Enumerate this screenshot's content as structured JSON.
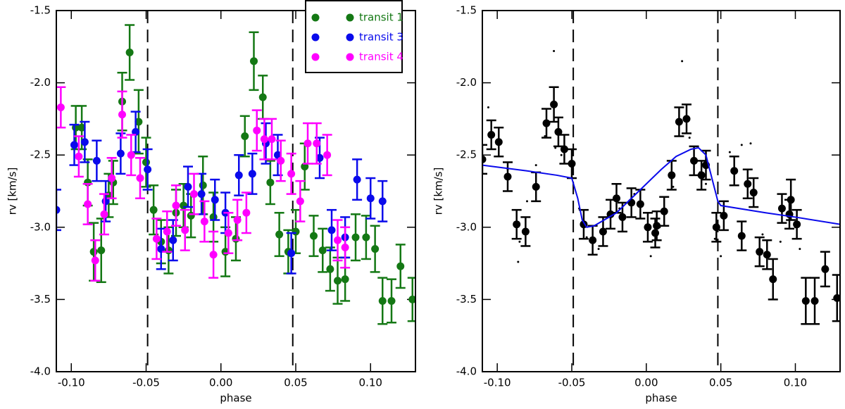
{
  "chart_data": [
    {
      "type": "scatter",
      "xlabel": "phase",
      "ylabel": "rv [km/s]",
      "xlim": [
        -0.11,
        0.13
      ],
      "ylim": [
        -4.0,
        -1.5
      ],
      "xticks": [
        {
          "value": -0.1,
          "label": "-0.10"
        },
        {
          "value": -0.05,
          "label": "-0.05"
        },
        {
          "value": 0,
          "label": "0.00"
        },
        {
          "value": 0.05,
          "label": "0.05"
        },
        {
          "value": 0.1,
          "label": "0.10"
        }
      ],
      "yticks": [
        {
          "value": -4,
          "label": "-4.0"
        },
        -3.5,
        {
          "value": -3,
          "label": "-3.0"
        },
        -2.5,
        {
          "value": -2,
          "label": "-2.0"
        },
        -1.5
      ],
      "vlines": [
        -0.049,
        0.048
      ],
      "legend": "upper right",
      "series": [
        {
          "name": "transit 1",
          "color": "#147814",
          "x": [
            -0.097,
            -0.093,
            -0.089,
            -0.085,
            -0.08,
            -0.075,
            -0.072,
            -0.066,
            -0.061,
            -0.055,
            -0.05,
            -0.045,
            -0.04,
            -0.035,
            -0.03,
            -0.025,
            -0.02,
            -0.012,
            -0.005,
            0.003,
            0.01,
            0.016,
            0.022,
            0.028,
            0.033,
            0.039,
            0.045,
            0.05,
            0.056,
            0.062,
            0.068,
            0.073,
            0.078,
            0.083,
            0.09,
            0.097,
            0.103,
            0.108,
            0.114,
            0.12,
            0.128
          ],
          "values": [
            -2.31,
            -2.31,
            -2.69,
            -3.17,
            -3.16,
            -2.78,
            -2.69,
            -2.13,
            -1.79,
            -2.27,
            -2.55,
            -2.88,
            -3.1,
            -3.16,
            -2.9,
            -2.85,
            -2.92,
            -2.71,
            -2.93,
            -3.17,
            -3.08,
            -2.37,
            -1.85,
            -2.1,
            -2.69,
            -3.05,
            -3.17,
            -3.03,
            -2.58,
            -3.06,
            -3.16,
            -3.29,
            -3.37,
            -3.36,
            -3.07,
            -3.07,
            -3.15,
            -3.51,
            -3.51,
            -3.27,
            -3.5
          ],
          "errors": [
            0.15,
            0.15,
            0.16,
            0.2,
            0.22,
            0.15,
            0.15,
            0.2,
            0.19,
            0.22,
            0.17,
            0.17,
            0.15,
            0.16,
            0.16,
            0.15,
            0.15,
            0.2,
            0.17,
            0.17,
            0.15,
            0.14,
            0.2,
            0.15,
            0.15,
            0.15,
            0.15,
            0.15,
            0.16,
            0.14,
            0.15,
            0.15,
            0.16,
            0.15,
            0.16,
            0.15,
            0.16,
            0.16,
            0.15,
            0.15,
            0.15
          ]
        },
        {
          "name": "transit 3",
          "color": "#0a0aeb",
          "x": [
            -0.11,
            -0.098,
            -0.091,
            -0.083,
            -0.077,
            -0.067,
            -0.057,
            -0.049,
            -0.04,
            -0.032,
            -0.022,
            -0.013,
            -0.004,
            0.003,
            0.012,
            0.021,
            0.03,
            0.038,
            0.047,
            0.066,
            0.074,
            0.083,
            0.091,
            0.1,
            0.108
          ],
          "values": [
            -2.88,
            -2.43,
            -2.41,
            -2.54,
            -2.82,
            -2.49,
            -2.34,
            -2.6,
            -3.15,
            -3.09,
            -2.72,
            -2.77,
            -2.81,
            -2.9,
            -2.64,
            -2.63,
            -2.42,
            -2.5,
            -3.18,
            -2.52,
            -3.02,
            -3.07,
            -2.67,
            -2.8,
            -2.82
          ],
          "errors": [
            0.14,
            0.14,
            0.14,
            0.14,
            0.14,
            0.14,
            0.14,
            0.14,
            0.14,
            0.14,
            0.14,
            0.14,
            0.14,
            0.14,
            0.14,
            0.14,
            0.14,
            0.14,
            0.14,
            0.14,
            0.14,
            0.14,
            0.14,
            0.14,
            0.14
          ]
        },
        {
          "name": "transit 4",
          "color": "#ff00ff",
          "x": [
            -0.107,
            -0.095,
            -0.089,
            -0.084,
            -0.078,
            -0.073,
            -0.066,
            -0.06,
            -0.054,
            -0.043,
            -0.036,
            -0.03,
            -0.024,
            -0.018,
            -0.011,
            -0.005,
            0.005,
            0.011,
            0.017,
            0.024,
            0.029,
            0.034,
            0.04,
            0.047,
            0.053,
            0.058,
            0.064,
            0.071,
            0.078,
            0.083
          ],
          "values": [
            -2.17,
            -2.51,
            -2.84,
            -3.23,
            -2.91,
            -2.66,
            -2.22,
            -2.5,
            -2.66,
            -3.08,
            -3.03,
            -2.85,
            -3.02,
            -2.77,
            -2.96,
            -3.19,
            -3.04,
            -2.95,
            -2.9,
            -2.33,
            -2.39,
            -2.39,
            -2.54,
            -2.63,
            -2.82,
            -2.42,
            -2.42,
            -2.5,
            -3.09,
            -3.14
          ],
          "errors": [
            0.14,
            0.14,
            0.14,
            0.14,
            0.14,
            0.14,
            0.16,
            0.14,
            0.14,
            0.14,
            0.14,
            0.14,
            0.14,
            0.14,
            0.14,
            0.16,
            0.14,
            0.14,
            0.14,
            0.14,
            0.14,
            0.14,
            0.14,
            0.14,
            0.14,
            0.14,
            0.14,
            0.14,
            0.14,
            0.14
          ]
        }
      ]
    },
    {
      "type": "scatter",
      "xlabel": "phase",
      "ylabel": "rv [km/s]",
      "xlim": [
        -0.11,
        0.13
      ],
      "ylim": [
        -4.0,
        -1.5
      ],
      "xticks": [
        {
          "value": -0.1,
          "label": "-0.10"
        },
        {
          "value": -0.05,
          "label": "-0.05"
        },
        {
          "value": 0,
          "label": "0.00"
        },
        {
          "value": 0.05,
          "label": "0.05"
        },
        {
          "value": 0.1,
          "label": "0.10"
        }
      ],
      "yticks": [
        {
          "value": -4,
          "label": "-4.0"
        },
        -3.5,
        {
          "value": -3,
          "label": "-3.0"
        },
        -2.5,
        {
          "value": -2,
          "label": "-2.0"
        },
        -1.5
      ],
      "vlines": [
        -0.049,
        0.048
      ],
      "series": [
        {
          "color": "#000000",
          "marker": "dot",
          "x": [
            -0.106,
            -0.1,
            -0.093,
            -0.086,
            -0.085,
            -0.08,
            -0.074,
            -0.068,
            -0.062,
            -0.061,
            -0.057,
            -0.045,
            -0.04,
            -0.032,
            -0.018,
            -0.008,
            0.003,
            0.009,
            0.018,
            0.024,
            0.029,
            0.036,
            0.04,
            0.046,
            0.05,
            0.056,
            0.064,
            0.07,
            0.078,
            0.09,
            0.1,
            0.103
          ],
          "values": [
            -2.17,
            -2.42,
            -2.6,
            -3.24,
            -3.1,
            -2.82,
            -2.57,
            -2.37,
            -1.78,
            -2.45,
            -2.5,
            -2.87,
            -3.07,
            -3.15,
            -2.87,
            -2.77,
            -3.2,
            -3.0,
            -2.72,
            -1.85,
            -2.38,
            -2.62,
            -2.7,
            -3.08,
            -3.2,
            -2.48,
            -2.43,
            -2.42,
            -3.05,
            -3.1,
            -3.0,
            -3.15
          ]
        },
        {
          "color": "#000000",
          "x": [
            -0.11,
            -0.104,
            -0.099,
            -0.093,
            -0.087,
            -0.081,
            -0.074,
            -0.067,
            -0.062,
            -0.059,
            -0.055,
            -0.05,
            -0.042,
            -0.036,
            -0.029,
            -0.024,
            -0.02,
            -0.016,
            -0.01,
            -0.004,
            0.001,
            0.006,
            0.007,
            0.012,
            0.017,
            0.022,
            0.027,
            0.032,
            0.037,
            0.04,
            0.047,
            0.052,
            0.059,
            0.064,
            0.068,
            0.072,
            0.076,
            0.081,
            0.085,
            0.091,
            0.096,
            0.097,
            0.101,
            0.107,
            0.113,
            0.12,
            0.128
          ],
          "values": [
            -2.53,
            -2.36,
            -2.41,
            -2.65,
            -2.98,
            -3.03,
            -2.72,
            -2.28,
            -2.15,
            -2.34,
            -2.46,
            -2.56,
            -2.98,
            -3.09,
            -3.03,
            -2.91,
            -2.8,
            -2.93,
            -2.83,
            -2.84,
            -3.0,
            -3.04,
            -2.99,
            -2.89,
            -2.64,
            -2.27,
            -2.25,
            -2.54,
            -2.64,
            -2.57,
            -3.0,
            -2.92,
            -2.61,
            -3.06,
            -2.7,
            -2.76,
            -3.17,
            -3.19,
            -3.36,
            -2.87,
            -2.91,
            -2.81,
            -2.98,
            -3.51,
            -3.51,
            -3.29,
            -3.49
          ],
          "errors": [
            0.1,
            0.1,
            0.1,
            0.1,
            0.1,
            0.1,
            0.1,
            0.1,
            0.12,
            0.1,
            0.1,
            0.1,
            0.1,
            0.1,
            0.1,
            0.1,
            0.1,
            0.1,
            0.1,
            0.1,
            0.1,
            0.1,
            0.1,
            0.1,
            0.1,
            0.1,
            0.1,
            0.1,
            0.1,
            0.1,
            0.1,
            0.1,
            0.1,
            0.1,
            0.1,
            0.1,
            0.1,
            0.1,
            0.14,
            0.1,
            0.1,
            0.14,
            0.1,
            0.16,
            0.16,
            0.12,
            0.16
          ]
        },
        {
          "color": "#0a0aeb",
          "style": "line",
          "x": [
            -0.11,
            -0.08,
            -0.06,
            -0.05,
            -0.046,
            -0.043,
            -0.04,
            -0.035,
            -0.02,
            -0.01,
            0.0,
            0.01,
            0.02,
            0.03,
            0.035,
            0.04,
            0.045,
            0.048,
            0.05,
            0.08,
            0.1,
            0.13
          ],
          "values": [
            -2.57,
            -2.61,
            -2.64,
            -2.66,
            -2.8,
            -2.95,
            -3.0,
            -2.99,
            -2.9,
            -2.8,
            -2.7,
            -2.6,
            -2.51,
            -2.46,
            -2.45,
            -2.5,
            -2.7,
            -2.82,
            -2.85,
            -2.9,
            -2.93,
            -2.98
          ]
        }
      ]
    }
  ]
}
